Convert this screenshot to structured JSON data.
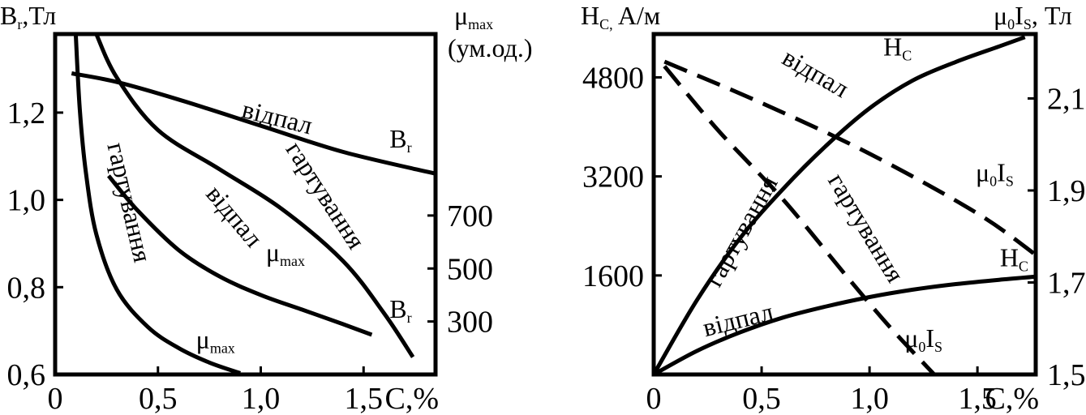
{
  "chart_data": [
    {
      "type": "line",
      "y_left_label": {
        "main": "B",
        "sub": "r",
        "tail": ",Тл"
      },
      "y_right_label": {
        "main": "μ",
        "sub": "max",
        "line2": "(ум.од.)"
      },
      "x_label": "С,%",
      "xlim": [
        0,
        1.85
      ],
      "ylim_left": [
        0.6,
        1.38
      ],
      "ylim_right": [
        100,
        1385
      ],
      "x_ticks": [
        {
          "value": 0,
          "label": "0"
        },
        {
          "value": 0.5,
          "label": "0,5"
        },
        {
          "value": 1.0,
          "label": "1,0"
        },
        {
          "value": 1.5,
          "label": "1,5"
        }
      ],
      "y_left_ticks": [
        {
          "value": 0.6,
          "label": "0,6"
        },
        {
          "value": 0.8,
          "label": "0,8"
        },
        {
          "value": 1.0,
          "label": "1,0"
        },
        {
          "value": 1.2,
          "label": "1,2"
        }
      ],
      "y_right_ticks": [
        {
          "value": 300,
          "label": "300"
        },
        {
          "value": 500,
          "label": "500"
        },
        {
          "value": 700,
          "label": "700"
        }
      ],
      "series": [
        {
          "axis": "left",
          "style": "solid",
          "x": [
            0.08,
            0.3,
            0.6,
            1.0,
            1.4,
            1.85
          ],
          "y": [
            1.29,
            1.27,
            1.23,
            1.17,
            1.11,
            1.06
          ]
        },
        {
          "axis": "left",
          "style": "solid",
          "x": [
            0.2,
            0.3,
            0.5,
            0.8,
            1.1,
            1.4,
            1.6,
            1.74
          ],
          "y": [
            1.38,
            1.28,
            1.16,
            1.07,
            0.98,
            0.86,
            0.74,
            0.64
          ]
        },
        {
          "axis": "right",
          "style": "solid",
          "x": [
            0.26,
            0.4,
            0.6,
            0.8,
            1.0,
            1.2,
            1.4,
            1.54
          ],
          "y": [
            850,
            720,
            570,
            470,
            400,
            345,
            290,
            250
          ]
        },
        {
          "axis": "right",
          "style": "solid",
          "x": [
            0.1,
            0.12,
            0.15,
            0.2,
            0.3,
            0.45,
            0.6,
            0.75,
            0.9
          ],
          "y": [
            1385,
            1100,
            860,
            630,
            420,
            280,
            200,
            145,
            105
          ]
        }
      ],
      "annotations": [
        {
          "text": "відпал",
          "x": 1.07,
          "y_left": 1.17,
          "rotate": 14
        },
        {
          "text": "B",
          "sub": "r",
          "x": 1.68,
          "y_left": 1.12,
          "rotate": 0
        },
        {
          "text": "гартування",
          "x": 1.28,
          "y_left": 1.0,
          "rotate": 57
        },
        {
          "text": "відпал",
          "x": 0.84,
          "y_left": 0.95,
          "rotate": 50
        },
        {
          "text": "μ",
          "sub": "max",
          "x": 1.12,
          "y_left": 0.86,
          "rotate": 0
        },
        {
          "text": "B",
          "sub": "r",
          "x": 1.68,
          "y_left": 0.73,
          "rotate": 0
        },
        {
          "text": "гартування",
          "x": 0.32,
          "y_left": 0.99,
          "rotate": 77
        },
        {
          "text": "μ",
          "sub": "max",
          "x": 0.78,
          "y_left": 0.66,
          "rotate": 0
        }
      ]
    },
    {
      "type": "line",
      "y_left_label": {
        "main": "H",
        "sub": "C,",
        "tail": " A/м"
      },
      "y_right_label": {
        "main": "μ",
        "sub0": "0",
        "mid": "I",
        "sub": "S",
        "tail": ", Тл"
      },
      "x_label": "С,%",
      "xlim": [
        0,
        1.77
      ],
      "ylim_left": [
        0,
        5500
      ],
      "ylim_right": [
        1.5,
        2.24
      ],
      "x_ticks": [
        {
          "value": 0,
          "label": "0"
        },
        {
          "value": 0.5,
          "label": "0,5"
        },
        {
          "value": 1.0,
          "label": "1,0"
        },
        {
          "value": 1.5,
          "label": "1,5"
        }
      ],
      "y_left_ticks": [
        {
          "value": 1600,
          "label": "1600"
        },
        {
          "value": 3200,
          "label": "3200"
        },
        {
          "value": 4800,
          "label": "4800"
        }
      ],
      "y_right_ticks": [
        {
          "value": 1.5,
          "label": "1,5"
        },
        {
          "value": 1.7,
          "label": "1,7"
        },
        {
          "value": 1.9,
          "label": "1,9"
        },
        {
          "value": 2.1,
          "label": "2,1"
        }
      ],
      "series": [
        {
          "axis": "left",
          "style": "solid",
          "x": [
            0,
            0.2,
            0.4,
            0.6,
            0.8,
            1.0,
            1.2,
            1.4,
            1.6,
            1.72
          ],
          "y": [
            0,
            1200,
            2200,
            3000,
            3700,
            4300,
            4750,
            5050,
            5300,
            5450
          ]
        },
        {
          "axis": "left",
          "style": "solid",
          "x": [
            0,
            0.2,
            0.4,
            0.6,
            0.8,
            1.0,
            1.2,
            1.4,
            1.6,
            1.77
          ],
          "y": [
            0,
            380,
            680,
            920,
            1100,
            1250,
            1370,
            1460,
            1530,
            1580
          ]
        },
        {
          "axis": "right",
          "style": "dashed",
          "x": [
            0.05,
            0.5,
            1.0,
            1.5,
            1.77
          ],
          "y": [
            2.18,
            2.09,
            1.98,
            1.85,
            1.76
          ]
        },
        {
          "axis": "right",
          "style": "dashed",
          "x": [
            0.05,
            0.3,
            0.6,
            0.9,
            1.1,
            1.3
          ],
          "y": [
            2.17,
            2.03,
            1.88,
            1.71,
            1.6,
            1.5
          ]
        }
      ],
      "annotations": [
        {
          "text": "H",
          "sub": "C",
          "x": 1.13,
          "y_left": 5150,
          "rotate": 0
        },
        {
          "text": "відпал",
          "x": 0.73,
          "y_left": 4750,
          "rotate": 30
        },
        {
          "text": "μ",
          "sub0": "0",
          "mid": "I",
          "sub": "S",
          "x": 1.58,
          "y_right": 1.92,
          "rotate": 0
        },
        {
          "text": "гартування",
          "x": 0.44,
          "y_left": 2250,
          "rotate": -61
        },
        {
          "text": "гартування",
          "x": 0.95,
          "y_left": 2300,
          "rotate": 59
        },
        {
          "text": "H",
          "sub": "C",
          "x": 1.67,
          "y_left": 1750,
          "rotate": 0
        },
        {
          "text": "відпал",
          "x": 0.4,
          "y_left": 750,
          "rotate": -14
        },
        {
          "text": "μ",
          "sub0": "0",
          "mid": "I",
          "sub": "S",
          "x": 1.25,
          "y_right": 1.56,
          "rotate": 0
        }
      ]
    }
  ]
}
